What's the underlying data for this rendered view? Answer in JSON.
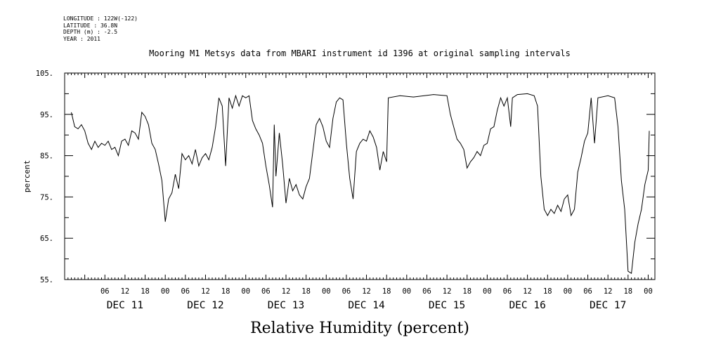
{
  "meta": {
    "longitude": "LONGITUDE : 122W(-122)",
    "latitude": "LATITUDE : 36.8N",
    "depth": "DEPTH (m) : -2.5",
    "year": "YEAR : 2011"
  },
  "chart_data": {
    "type": "line",
    "title": "Mooring M1 Metsys data from MBARI instrument id 1396 at original sampling intervals",
    "xlabel": "Relative Humidity (percent)",
    "ylabel": "percent",
    "ylim": [
      55,
      105
    ],
    "yticks": [
      "55.",
      "65.",
      "75.",
      "85.",
      "95.",
      "105."
    ],
    "xlim": [
      "2011-12-10 18:00",
      "2011-12-18 02:00"
    ],
    "xticks": [
      {
        "t": "2011-12-11 06:00",
        "label": "06"
      },
      {
        "t": "2011-12-11 12:00",
        "label": "12"
      },
      {
        "t": "2011-12-11 18:00",
        "label": "18"
      },
      {
        "t": "2011-12-12 00:00",
        "label": "00"
      },
      {
        "t": "2011-12-12 06:00",
        "label": "06"
      },
      {
        "t": "2011-12-12 12:00",
        "label": "12"
      },
      {
        "t": "2011-12-12 18:00",
        "label": "18"
      },
      {
        "t": "2011-12-13 00:00",
        "label": "00"
      },
      {
        "t": "2011-12-13 06:00",
        "label": "06"
      },
      {
        "t": "2011-12-13 12:00",
        "label": "12"
      },
      {
        "t": "2011-12-13 18:00",
        "label": "18"
      },
      {
        "t": "2011-12-14 00:00",
        "label": "00"
      },
      {
        "t": "2011-12-14 06:00",
        "label": "06"
      },
      {
        "t": "2011-12-14 12:00",
        "label": "12"
      },
      {
        "t": "2011-12-14 18:00",
        "label": "18"
      },
      {
        "t": "2011-12-15 00:00",
        "label": "00"
      },
      {
        "t": "2011-12-15 06:00",
        "label": "06"
      },
      {
        "t": "2011-12-15 12:00",
        "label": "12"
      },
      {
        "t": "2011-12-15 18:00",
        "label": "18"
      },
      {
        "t": "2011-12-16 00:00",
        "label": "00"
      },
      {
        "t": "2011-12-16 06:00",
        "label": "06"
      },
      {
        "t": "2011-12-16 12:00",
        "label": "12"
      },
      {
        "t": "2011-12-16 18:00",
        "label": "18"
      },
      {
        "t": "2011-12-17 00:00",
        "label": "00"
      },
      {
        "t": "2011-12-17 06:00",
        "label": "06"
      },
      {
        "t": "2011-12-17 12:00",
        "label": "12"
      },
      {
        "t": "2011-12-17 18:00",
        "label": "18"
      },
      {
        "t": "2011-12-18 00:00",
        "label": "00"
      }
    ],
    "day_labels": [
      {
        "t": "2011-12-11 12:00",
        "label": "DEC 11"
      },
      {
        "t": "2011-12-12 12:00",
        "label": "DEC 12"
      },
      {
        "t": "2011-12-13 12:00",
        "label": "DEC 13"
      },
      {
        "t": "2011-12-14 12:00",
        "label": "DEC 14"
      },
      {
        "t": "2011-12-15 12:00",
        "label": "DEC 15"
      },
      {
        "t": "2011-12-16 12:00",
        "label": "DEC 16"
      },
      {
        "t": "2011-12-17 12:00",
        "label": "DEC 17"
      }
    ],
    "series": [
      {
        "color": "#000000",
        "points": [
          [
            "2011-12-10 20:00",
            95.5
          ],
          [
            "2011-12-10 21:00",
            92.0
          ],
          [
            "2011-12-10 22:00",
            91.5
          ],
          [
            "2011-12-10 23:00",
            92.5
          ],
          [
            "2011-12-11 00:00",
            91.0
          ],
          [
            "2011-12-11 01:00",
            88.0
          ],
          [
            "2011-12-11 02:00",
            86.5
          ],
          [
            "2011-12-11 03:00",
            88.5
          ],
          [
            "2011-12-11 04:00",
            87.0
          ],
          [
            "2011-12-11 05:00",
            88.0
          ],
          [
            "2011-12-11 06:00",
            87.5
          ],
          [
            "2011-12-11 07:00",
            88.5
          ],
          [
            "2011-12-11 08:00",
            86.5
          ],
          [
            "2011-12-11 09:00",
            87.0
          ],
          [
            "2011-12-11 10:00",
            85.0
          ],
          [
            "2011-12-11 11:00",
            88.5
          ],
          [
            "2011-12-11 12:00",
            89.0
          ],
          [
            "2011-12-11 13:00",
            87.5
          ],
          [
            "2011-12-11 14:00",
            91.0
          ],
          [
            "2011-12-11 15:00",
            90.5
          ],
          [
            "2011-12-11 16:00",
            89.0
          ],
          [
            "2011-12-11 17:00",
            95.5
          ],
          [
            "2011-12-11 18:00",
            94.5
          ],
          [
            "2011-12-11 19:00",
            92.5
          ],
          [
            "2011-12-11 20:00",
            88.0
          ],
          [
            "2011-12-11 21:00",
            86.5
          ],
          [
            "2011-12-11 22:00",
            83.0
          ],
          [
            "2011-12-11 23:00",
            79.0
          ],
          [
            "2011-12-12 00:00",
            69.0
          ],
          [
            "2011-12-12 01:00",
            74.5
          ],
          [
            "2011-12-12 02:00",
            76.0
          ],
          [
            "2011-12-12 03:00",
            80.5
          ],
          [
            "2011-12-12 04:00",
            77.0
          ],
          [
            "2011-12-12 05:00",
            85.5
          ],
          [
            "2011-12-12 06:00",
            84.0
          ],
          [
            "2011-12-12 07:00",
            85.0
          ],
          [
            "2011-12-12 08:00",
            83.0
          ],
          [
            "2011-12-12 09:00",
            86.5
          ],
          [
            "2011-12-12 10:00",
            82.5
          ],
          [
            "2011-12-12 11:00",
            84.5
          ],
          [
            "2011-12-12 12:00",
            85.5
          ],
          [
            "2011-12-12 13:00",
            84.0
          ],
          [
            "2011-12-12 14:00",
            87.0
          ],
          [
            "2011-12-12 15:00",
            92.0
          ],
          [
            "2011-12-12 16:00",
            99.0
          ],
          [
            "2011-12-12 17:00",
            97.0
          ],
          [
            "2011-12-12 18:00",
            82.5
          ],
          [
            "2011-12-12 19:00",
            99.0
          ],
          [
            "2011-12-12 20:00",
            96.5
          ],
          [
            "2011-12-12 21:00",
            99.5
          ],
          [
            "2011-12-12 22:00",
            97.0
          ],
          [
            "2011-12-12 23:00",
            99.5
          ],
          [
            "2011-12-13 00:00",
            99.0
          ],
          [
            "2011-12-13 01:00",
            99.5
          ],
          [
            "2011-12-13 02:00",
            93.5
          ],
          [
            "2011-12-13 03:00",
            91.5
          ],
          [
            "2011-12-13 04:00",
            90.0
          ],
          [
            "2011-12-13 05:00",
            88.0
          ],
          [
            "2011-12-13 06:00",
            82.5
          ],
          [
            "2011-12-13 07:00",
            78.0
          ],
          [
            "2011-12-13 08:00",
            72.5
          ],
          [
            "2011-12-13 08:30",
            92.5
          ],
          [
            "2011-12-13 09:00",
            80.0
          ],
          [
            "2011-12-13 10:00",
            90.5
          ],
          [
            "2011-12-13 11:00",
            83.0
          ],
          [
            "2011-12-13 12:00",
            73.5
          ],
          [
            "2011-12-13 13:00",
            79.5
          ],
          [
            "2011-12-13 14:00",
            76.5
          ],
          [
            "2011-12-13 15:00",
            78.0
          ],
          [
            "2011-12-13 16:00",
            75.5
          ],
          [
            "2011-12-13 17:00",
            74.5
          ],
          [
            "2011-12-13 18:00",
            77.5
          ],
          [
            "2011-12-13 19:00",
            79.5
          ],
          [
            "2011-12-13 20:00",
            86.0
          ],
          [
            "2011-12-13 21:00",
            92.5
          ],
          [
            "2011-12-13 22:00",
            94.0
          ],
          [
            "2011-12-13 23:00",
            92.0
          ],
          [
            "2011-12-14 00:00",
            88.5
          ],
          [
            "2011-12-14 01:00",
            87.0
          ],
          [
            "2011-12-14 02:00",
            94.0
          ],
          [
            "2011-12-14 03:00",
            98.0
          ],
          [
            "2011-12-14 04:00",
            99.0
          ],
          [
            "2011-12-14 05:00",
            98.5
          ],
          [
            "2011-12-14 06:00",
            88.0
          ],
          [
            "2011-12-14 07:00",
            79.5
          ],
          [
            "2011-12-14 08:00",
            74.5
          ],
          [
            "2011-12-14 09:00",
            86.0
          ],
          [
            "2011-12-14 10:00",
            88.0
          ],
          [
            "2011-12-14 11:00",
            89.0
          ],
          [
            "2011-12-14 12:00",
            88.5
          ],
          [
            "2011-12-14 13:00",
            91.0
          ],
          [
            "2011-12-14 14:00",
            89.5
          ],
          [
            "2011-12-14 15:00",
            87.0
          ],
          [
            "2011-12-14 16:00",
            81.5
          ],
          [
            "2011-12-14 17:00",
            86.0
          ],
          [
            "2011-12-14 18:00",
            83.5
          ],
          [
            "2011-12-14 18:30",
            99.0
          ],
          [
            "2011-12-14 22:00",
            99.5
          ],
          [
            "2011-12-15 02:00",
            99.2
          ],
          [
            "2011-12-15 08:00",
            99.8
          ],
          [
            "2011-12-15 12:00",
            99.5
          ],
          [
            "2011-12-15 13:00",
            95.0
          ],
          [
            "2011-12-15 14:00",
            92.0
          ],
          [
            "2011-12-15 15:00",
            89.0
          ],
          [
            "2011-12-15 16:00",
            88.0
          ],
          [
            "2011-12-15 17:00",
            86.5
          ],
          [
            "2011-12-15 18:00",
            82.0
          ],
          [
            "2011-12-15 19:00",
            83.5
          ],
          [
            "2011-12-15 20:00",
            84.5
          ],
          [
            "2011-12-15 21:00",
            86.0
          ],
          [
            "2011-12-15 22:00",
            85.0
          ],
          [
            "2011-12-15 23:00",
            87.5
          ],
          [
            "2011-12-16 00:00",
            88.0
          ],
          [
            "2011-12-16 01:00",
            91.5
          ],
          [
            "2011-12-16 02:00",
            92.0
          ],
          [
            "2011-12-16 03:00",
            96.0
          ],
          [
            "2011-12-16 04:00",
            99.0
          ],
          [
            "2011-12-16 05:00",
            97.0
          ],
          [
            "2011-12-16 06:00",
            99.0
          ],
          [
            "2011-12-16 07:00",
            92.0
          ],
          [
            "2011-12-16 07:30",
            99.0
          ],
          [
            "2011-12-16 09:00",
            99.8
          ],
          [
            "2011-12-16 12:00",
            100.0
          ],
          [
            "2011-12-16 14:00",
            99.5
          ],
          [
            "2011-12-16 15:00",
            97.0
          ],
          [
            "2011-12-16 16:00",
            80.0
          ],
          [
            "2011-12-16 17:00",
            72.0
          ],
          [
            "2011-12-16 18:00",
            70.5
          ],
          [
            "2011-12-16 19:00",
            72.0
          ],
          [
            "2011-12-16 20:00",
            71.0
          ],
          [
            "2011-12-16 21:00",
            73.0
          ],
          [
            "2011-12-16 22:00",
            71.5
          ],
          [
            "2011-12-16 23:00",
            74.5
          ],
          [
            "2011-12-17 00:00",
            75.5
          ],
          [
            "2011-12-17 01:00",
            70.5
          ],
          [
            "2011-12-17 02:00",
            72.0
          ],
          [
            "2011-12-17 03:00",
            81.0
          ],
          [
            "2011-12-17 04:00",
            84.5
          ],
          [
            "2011-12-17 05:00",
            88.5
          ],
          [
            "2011-12-17 06:00",
            90.5
          ],
          [
            "2011-12-17 07:00",
            99.0
          ],
          [
            "2011-12-17 08:00",
            88.0
          ],
          [
            "2011-12-17 09:00",
            99.0
          ],
          [
            "2011-12-17 12:00",
            99.5
          ],
          [
            "2011-12-17 14:00",
            99.0
          ],
          [
            "2011-12-17 15:00",
            92.0
          ],
          [
            "2011-12-17 16:00",
            79.0
          ],
          [
            "2011-12-17 17:00",
            72.0
          ],
          [
            "2011-12-17 18:00",
            57.0
          ],
          [
            "2011-12-17 19:00",
            56.5
          ],
          [
            "2011-12-17 20:00",
            64.0
          ],
          [
            "2011-12-17 21:00",
            68.5
          ],
          [
            "2011-12-17 22:00",
            72.0
          ],
          [
            "2011-12-17 23:00",
            78.0
          ],
          [
            "2011-12-18 00:00",
            81.5
          ],
          [
            "2011-12-18 00:20",
            91.0
          ]
        ]
      }
    ]
  }
}
